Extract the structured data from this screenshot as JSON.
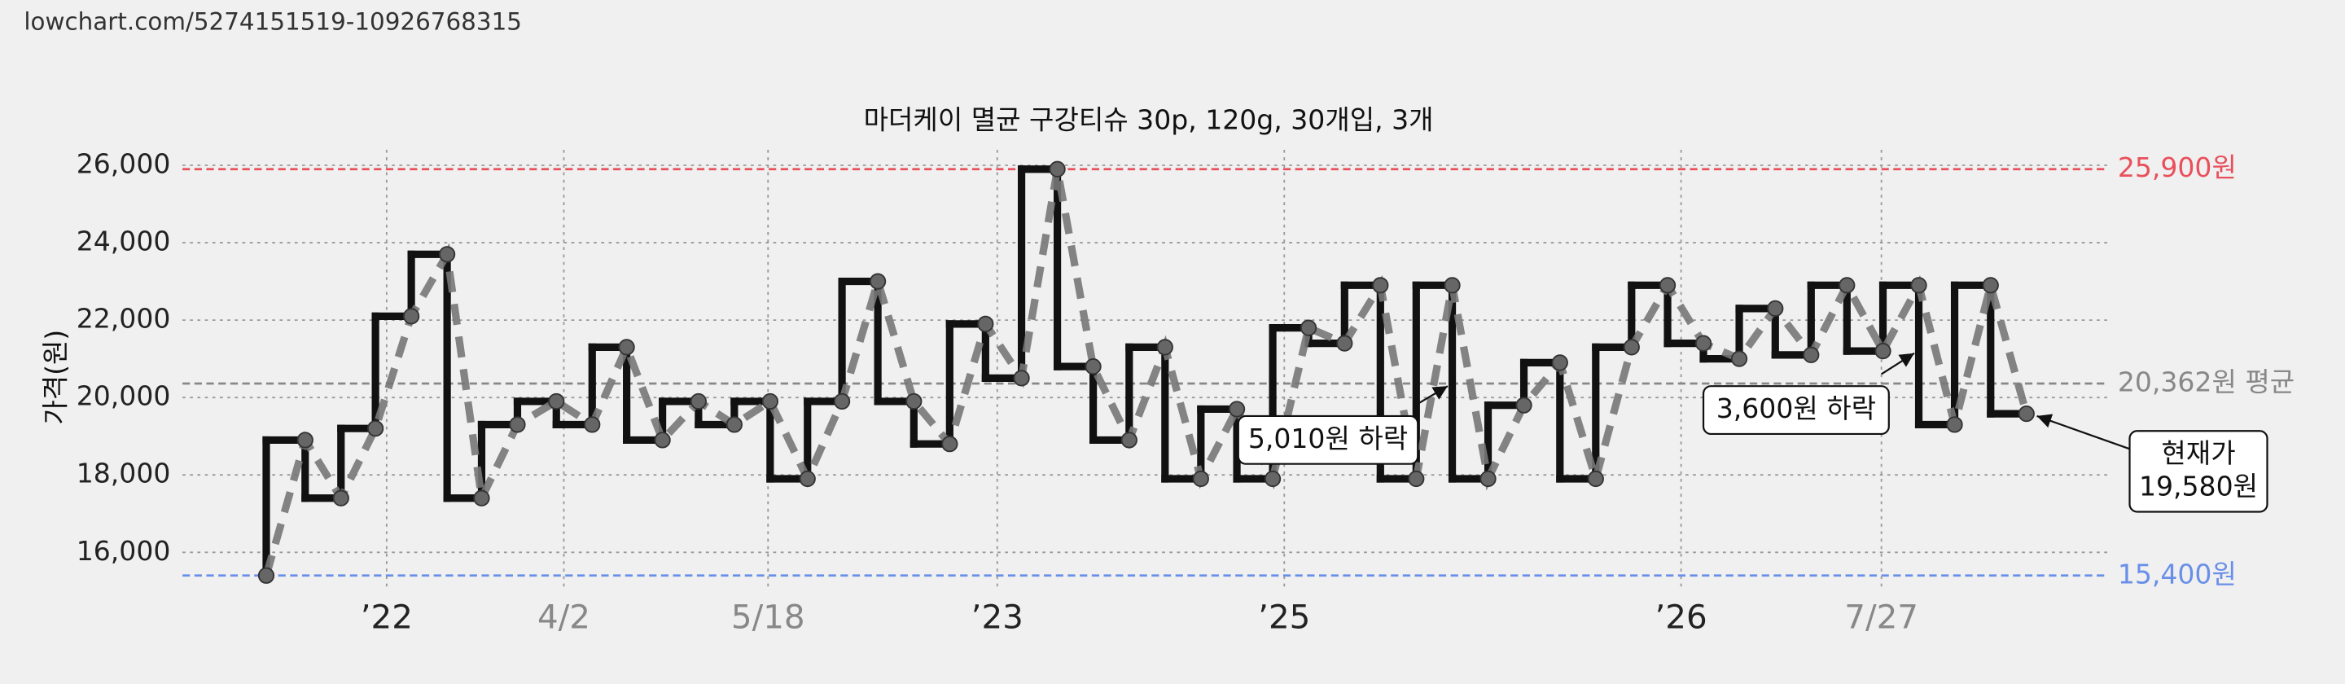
{
  "header": {
    "url": "lowchart.com/5274151519-10926768315"
  },
  "chart_data": {
    "type": "step-line",
    "title": "마더케이 멸균 구강티슈 30p, 120g, 30개입, 3개",
    "y_label": "가격(원)",
    "x": [
      4.35,
      6.37,
      8.23,
      10.02,
      11.88,
      13.74,
      15.53,
      17.39,
      19.41,
      21.27,
      23.06,
      24.92,
      26.79,
      28.65,
      30.51,
      32.45,
      34.24,
      36.1,
      37.97,
      39.83,
      41.69,
      43.56,
      45.42,
      47.28,
      49.15,
      51.01,
      52.87,
      54.74,
      56.6,
      58.46,
      60.33,
      62.19,
      64.05,
      65.92,
      67.78,
      69.64,
      71.51,
      73.37,
      75.23,
      77.1,
      78.96,
      80.82,
      82.69,
      84.55,
      86.41,
      88.28,
      90.14,
      92.0,
      93.87,
      95.73
    ],
    "values": [
      15400,
      18900,
      17400,
      19200,
      22100,
      23700,
      17400,
      19300,
      19900,
      19300,
      21300,
      18900,
      19900,
      19300,
      19900,
      17900,
      19900,
      23000,
      19900,
      18800,
      21900,
      20500,
      25900,
      20800,
      18900,
      21300,
      17900,
      19700,
      17900,
      21800,
      21400,
      22900,
      17900,
      22900,
      17900,
      19800,
      20900,
      17900,
      21300,
      22900,
      21400,
      21000,
      22300,
      21100,
      22900,
      21200,
      22900,
      19300,
      22900,
      19580
    ],
    "color": "#111111",
    "trend_color": "#777777",
    "xlim": [
      0,
      100
    ],
    "xticks": [
      {
        "value": 10.6,
        "label": "’22"
      },
      {
        "value": 19.8,
        "label": "4/2"
      },
      {
        "value": 30.4,
        "label": "5/18"
      },
      {
        "value": 42.3,
        "label": "’23"
      },
      {
        "value": 57.2,
        "label": "’25"
      },
      {
        "value": 77.8,
        "label": "’26"
      },
      {
        "value": 88.2,
        "label": "7/27"
      }
    ],
    "xtick_label_colors": [
      "#222222",
      "#888888",
      "#888888",
      "#222222",
      "#222222",
      "#222222",
      "#888888"
    ],
    "ylim": [
      15000,
      26400
    ],
    "yticks": [
      {
        "value": 16000,
        "label": "16,000"
      },
      {
        "value": 18000,
        "label": "18,000"
      },
      {
        "value": 20000,
        "label": "20,000"
      },
      {
        "value": 22000,
        "label": "22,000"
      },
      {
        "value": 24000,
        "label": "24,000"
      },
      {
        "value": 26000,
        "label": "26,000"
      }
    ],
    "grid": true,
    "reference_lines": [
      {
        "value": 25900,
        "label": "25,900원",
        "color": "#e8505b"
      },
      {
        "value": 20362,
        "label": "20,362원 평균",
        "color": "#888888"
      },
      {
        "value": 15400,
        "label": "15,400원",
        "color": "#6a8fe8"
      }
    ],
    "annotations": [
      {
        "lines": [
          "5,010원 하락"
        ]
      },
      {
        "lines": [
          "3,600원 하락"
        ]
      },
      {
        "lines": [
          "현재가",
          "19,580원"
        ]
      }
    ]
  }
}
